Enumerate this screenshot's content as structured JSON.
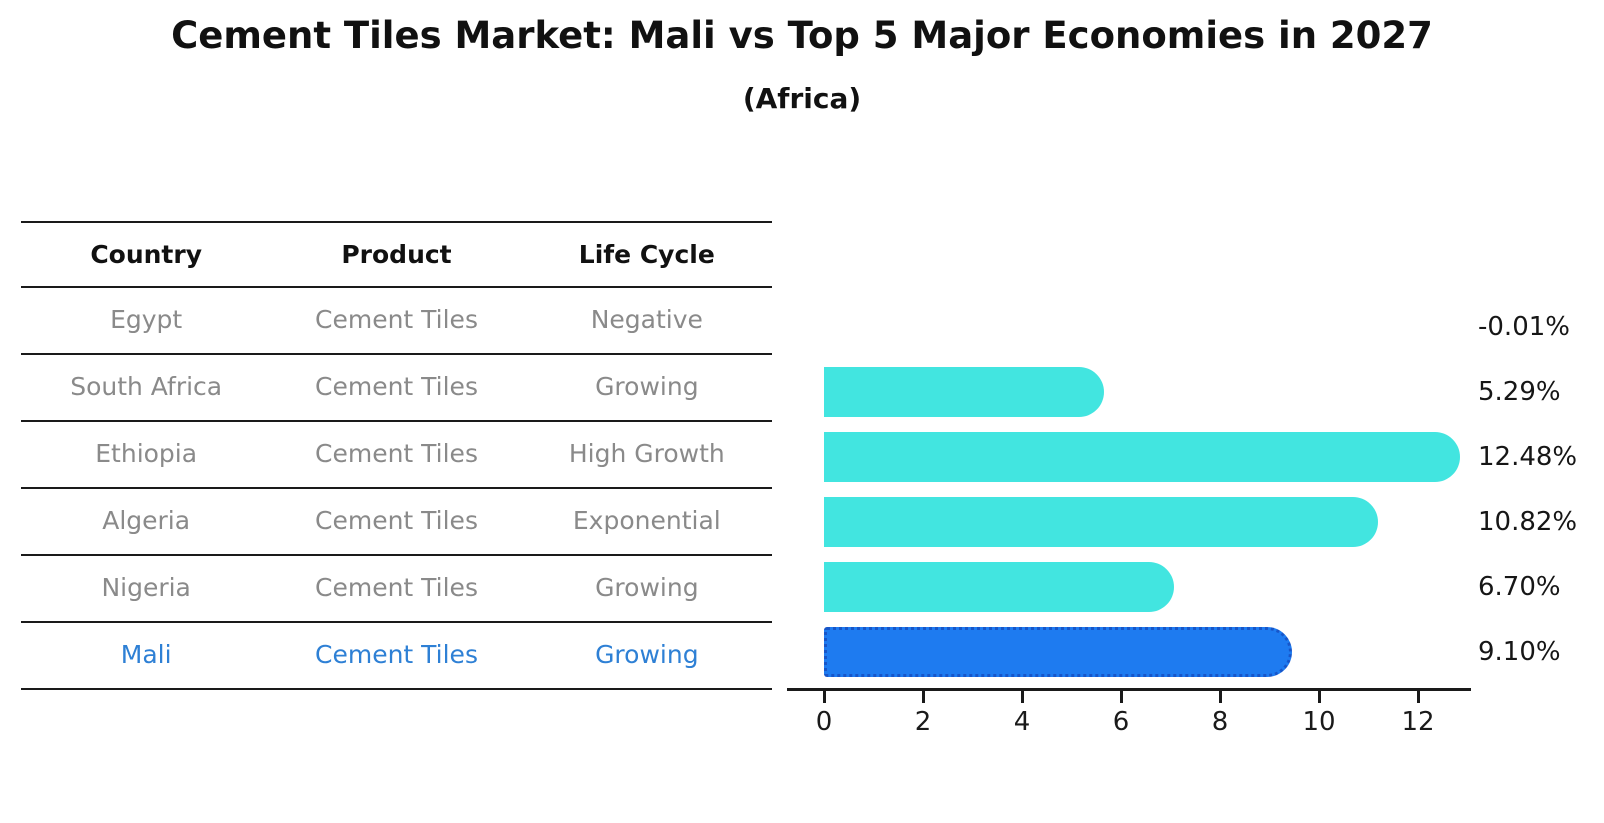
{
  "title": "Cement Tiles Market: Mali vs Top 5 Major Economies in 2027",
  "subtitle": "(Africa)",
  "table": {
    "headers": [
      "Country",
      "Product",
      "Life Cycle"
    ],
    "rows": [
      {
        "country": "Egypt",
        "product": "Cement Tiles",
        "life_cycle": "Negative",
        "highlight": false
      },
      {
        "country": "South Africa",
        "product": "Cement Tiles",
        "life_cycle": "Growing",
        "highlight": false
      },
      {
        "country": "Ethiopia",
        "product": "Cement Tiles",
        "life_cycle": "High Growth",
        "highlight": false
      },
      {
        "country": "Algeria",
        "product": "Cement Tiles",
        "life_cycle": "Exponential",
        "highlight": false
      },
      {
        "country": "Nigeria",
        "product": "Cement Tiles",
        "life_cycle": "Growing",
        "highlight": false
      },
      {
        "country": "Mali",
        "product": "Cement Tiles",
        "life_cycle": "Growing",
        "highlight": true
      }
    ]
  },
  "chart_data": {
    "type": "bar",
    "orientation": "horizontal",
    "title": "Cement Tiles Market: Mali vs Top 5 Major Economies in 2027 (Africa)",
    "categories": [
      "Egypt",
      "South Africa",
      "Ethiopia",
      "Algeria",
      "Nigeria",
      "Mali"
    ],
    "values": [
      -0.01,
      5.29,
      12.48,
      10.82,
      6.7,
      9.1
    ],
    "value_labels": [
      "-0.01%",
      "5.29%",
      "12.48%",
      "10.82%",
      "6.70%",
      "9.10%"
    ],
    "x_ticks": [
      0,
      2,
      4,
      6,
      8,
      10,
      12
    ],
    "xlim": [
      0,
      13.2
    ],
    "xlabel": "",
    "ylabel": "",
    "grid": false,
    "legend_position": "none",
    "bar_color": "#42E5E0",
    "highlight_bar_color": "#1E7BF0",
    "highlight_border_color": "#1756C9",
    "highlight_index": 5
  },
  "colors": {
    "title_text": "#111111",
    "table_header_text": "#111111",
    "table_row_text": "#8A8A8A",
    "highlight_row_text": "#2E80D5",
    "axis": "#1A1A1A",
    "value_label_text": "#161616",
    "background": "#FFFFFF"
  }
}
